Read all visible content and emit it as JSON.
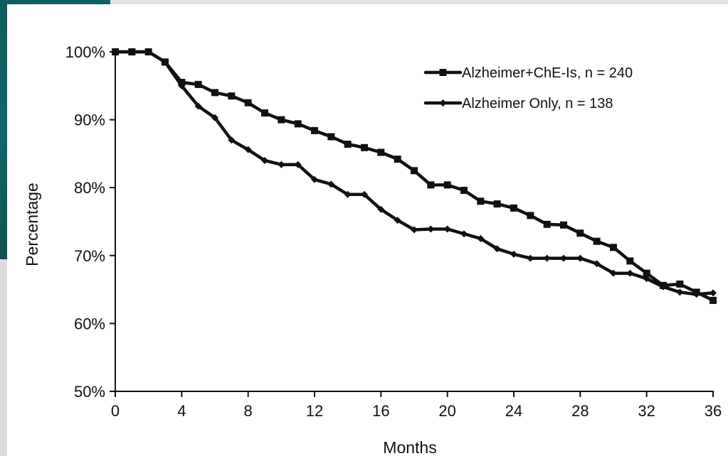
{
  "background": {
    "accent_color": "#0f5c5e"
  },
  "chart_data": {
    "type": "line",
    "title": "",
    "xlabel": "Months",
    "ylabel": "Percentage",
    "xlim": [
      0,
      36
    ],
    "ylim": [
      50,
      100
    ],
    "x_ticks": [
      0,
      4,
      8,
      12,
      16,
      20,
      24,
      28,
      32,
      36
    ],
    "x_tick_labels": [
      "0",
      "4",
      "8",
      "12",
      "16",
      "20",
      "24",
      "28",
      "32",
      "36"
    ],
    "y_ticks": [
      50,
      60,
      70,
      80,
      90,
      100
    ],
    "y_tick_labels": [
      "50%",
      "60%",
      "70%",
      "80%",
      "90%",
      "100%"
    ],
    "grid": false,
    "legend_position": "top-right",
    "x": [
      0,
      1,
      2,
      3,
      4,
      5,
      6,
      7,
      8,
      9,
      10,
      11,
      12,
      13,
      14,
      15,
      16,
      17,
      18,
      19,
      20,
      21,
      22,
      23,
      24,
      25,
      26,
      27,
      28,
      29,
      30,
      31,
      32,
      33,
      34,
      35,
      36
    ],
    "series": [
      {
        "name": "Alzheimer+ChE-Is, n = 240",
        "marker": "square",
        "color": "#111111",
        "values": [
          100,
          100,
          100,
          98.5,
          95.5,
          95.2,
          94,
          93.5,
          92.5,
          91,
          90,
          89.4,
          88.4,
          87.5,
          86.4,
          85.9,
          85.2,
          84.2,
          82.5,
          80.4,
          80.4,
          79.6,
          78,
          77.6,
          77,
          75.9,
          74.6,
          74.5,
          73.3,
          72.1,
          71.2,
          69.2,
          67.4,
          65.6,
          65.8,
          64.6,
          63.4
        ]
      },
      {
        "name": "Alzheimer Only, n = 138",
        "marker": "diamond",
        "color": "#111111",
        "values": [
          100,
          100,
          100,
          98.5,
          95,
          92,
          90.3,
          87,
          85.6,
          84,
          83.4,
          83.4,
          81.2,
          80.5,
          79,
          79,
          76.8,
          75.2,
          73.8,
          73.9,
          73.9,
          73.2,
          72.5,
          71,
          70.2,
          69.6,
          69.6,
          69.6,
          69.6,
          68.8,
          67.4,
          67.4,
          66.6,
          65.4,
          64.6,
          64.3,
          64.5
        ]
      }
    ]
  }
}
